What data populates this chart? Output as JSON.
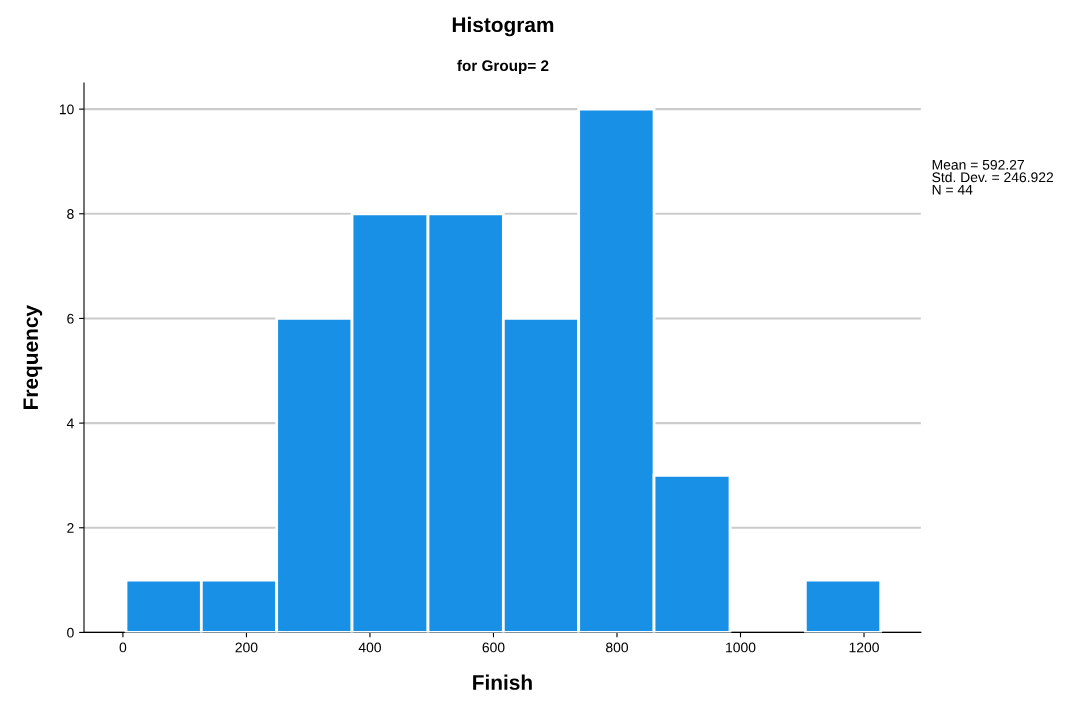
{
  "chart_data": {
    "type": "histogram",
    "title": "Histogram",
    "subtitle": "for Group= 2",
    "xlabel": "Finish",
    "ylabel": "Frequency",
    "bins": [
      5,
      127,
      249,
      371,
      494,
      616,
      738,
      860,
      983,
      1105,
      1227
    ],
    "values": [
      1,
      1,
      6,
      8,
      8,
      6,
      10,
      3,
      0,
      1
    ],
    "color": "#1790e6",
    "xlim": [
      -63,
      1292
    ],
    "xticks": [
      0,
      200,
      400,
      600,
      800,
      1000,
      1200
    ],
    "ylim": [
      0,
      10.5
    ],
    "yticks": [
      0,
      2,
      4,
      6,
      8,
      10
    ],
    "grid": "y",
    "annotations": [
      "Mean = 592.27",
      "Std. Dev. = 246.922",
      "N = 44"
    ]
  }
}
